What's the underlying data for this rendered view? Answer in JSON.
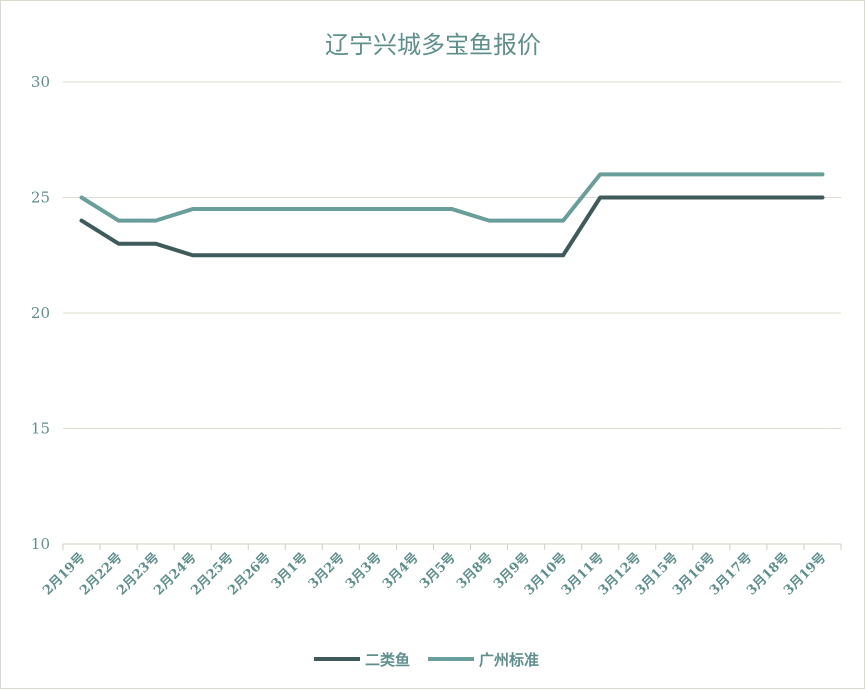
{
  "chart_data": {
    "type": "line",
    "title": "辽宁兴城多宝鱼报价",
    "xlabel": "",
    "ylabel": "",
    "categories": [
      "2月19号",
      "2月22号",
      "2月23号",
      "2月24号",
      "2月25号",
      "2月26号",
      "3月1号",
      "3月2号",
      "3月3号",
      "3月4号",
      "3月5号",
      "3月8号",
      "3月9号",
      "3月10号",
      "3月11号",
      "3月12号",
      "3月15号",
      "3月16号",
      "3月17号",
      "3月18号",
      "3月19号"
    ],
    "series": [
      {
        "name": "二类鱼",
        "color": "#3f5a5a",
        "values": [
          24,
          23,
          23,
          22.5,
          22.5,
          22.5,
          22.5,
          22.5,
          22.5,
          22.5,
          22.5,
          22.5,
          22.5,
          22.5,
          25,
          25,
          25,
          25,
          25,
          25,
          25
        ]
      },
      {
        "name": "广州标准",
        "color": "#6a9e9a",
        "values": [
          25,
          24,
          24,
          24.5,
          24.5,
          24.5,
          24.5,
          24.5,
          24.5,
          24.5,
          24.5,
          24,
          24,
          24,
          26,
          26,
          26,
          26,
          26,
          26,
          26
        ]
      }
    ],
    "ylim": [
      10,
      30
    ],
    "yticks": [
      "10",
      "15",
      "20",
      "25",
      "30"
    ],
    "grid": true,
    "legend_position": "bottom"
  }
}
